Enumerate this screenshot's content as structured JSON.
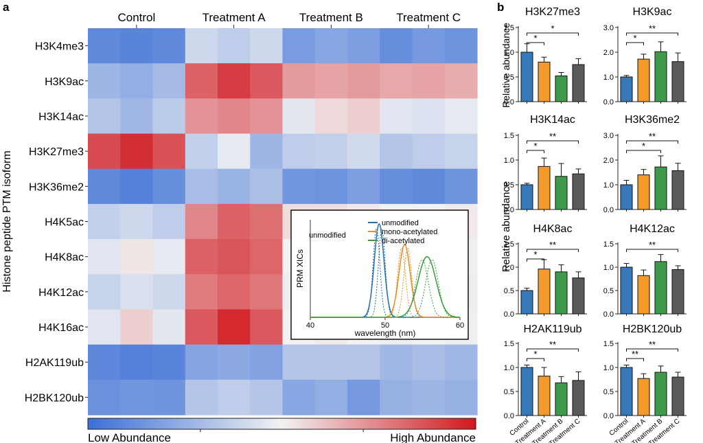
{
  "panel_a_label": "a",
  "panel_b_label": "b",
  "chart_data": [
    {
      "type": "heatmap",
      "panel": "a",
      "ylabel": "Histone peptide PTM isoform",
      "groups": [
        "Control",
        "Treatment A",
        "Treatment B",
        "Treatment C"
      ],
      "rows": [
        "H3K4me3",
        "H3K9ac",
        "H3K14ac",
        "H3K27me3",
        "H3K36me2",
        "H4K5ac",
        "H4K8ac",
        "H4K12ac",
        "H4K16ac",
        "H2AK119ub",
        "H2BK120ub"
      ],
      "scale": {
        "min": 0,
        "max": 1,
        "low_label": "Low Abundance",
        "high_label": "High Abundance",
        "low_color": "#3b6fd6",
        "mid_color": "#f2f2f2",
        "high_color": "#d0181e"
      },
      "values": [
        [
          0.1,
          0.08,
          0.1,
          0.4,
          0.36,
          0.4,
          0.17,
          0.21,
          0.18,
          0.12,
          0.16,
          0.14
        ],
        [
          0.27,
          0.24,
          0.29,
          0.83,
          0.92,
          0.85,
          0.7,
          0.68,
          0.7,
          0.67,
          0.68,
          0.66
        ],
        [
          0.33,
          0.28,
          0.35,
          0.72,
          0.75,
          0.72,
          0.46,
          0.56,
          0.58,
          0.45,
          0.44,
          0.47
        ],
        [
          0.88,
          0.95,
          0.87,
          0.37,
          0.47,
          0.27,
          0.36,
          0.37,
          0.41,
          0.33,
          0.36,
          0.38
        ],
        [
          0.1,
          0.07,
          0.12,
          0.3,
          0.26,
          0.31,
          0.15,
          0.14,
          0.18,
          0.12,
          0.1,
          0.14
        ],
        [
          0.37,
          0.4,
          0.36,
          0.75,
          0.83,
          0.8,
          0.55,
          0.55,
          0.52,
          0.5,
          0.5,
          0.52
        ],
        [
          0.45,
          0.53,
          0.47,
          0.83,
          0.86,
          0.82,
          0.5,
          0.52,
          0.5,
          0.48,
          0.5,
          0.49
        ],
        [
          0.38,
          0.43,
          0.4,
          0.77,
          0.82,
          0.78,
          0.48,
          0.52,
          0.48,
          0.47,
          0.49,
          0.48
        ],
        [
          0.45,
          0.58,
          0.46,
          0.85,
          0.96,
          0.85,
          0.5,
          0.52,
          0.5,
          0.49,
          0.5,
          0.49
        ],
        [
          0.09,
          0.07,
          0.08,
          0.2,
          0.22,
          0.19,
          0.33,
          0.33,
          0.33,
          0.28,
          0.3,
          0.28
        ],
        [
          0.13,
          0.15,
          0.14,
          0.33,
          0.36,
          0.33,
          0.21,
          0.24,
          0.16,
          0.25,
          0.27,
          0.25
        ]
      ]
    },
    {
      "type": "line",
      "panel": "a-inset",
      "xlabel": "wavelength (nm)",
      "ylabel": "PRM XICs",
      "annotation": "unmodified",
      "xlim": [
        40,
        60
      ],
      "xticks": [
        40,
        50,
        60
      ],
      "series": [
        {
          "name": "unmodified",
          "color": "#1f6fb5",
          "center": 49.2,
          "width": 0.65,
          "height": 1.0
        },
        {
          "name": "mono-acetylated",
          "color": "#ee8a1c",
          "center": 52.6,
          "width": 0.75,
          "height": 0.78
        },
        {
          "name": "di-acetylated",
          "color": "#3a9a3a",
          "center": 55.6,
          "width": 1.2,
          "height": 0.65
        }
      ]
    },
    {
      "type": "bar",
      "panel": "b",
      "ylabel": "Relative abundance",
      "categories": [
        "Control",
        "Treatment A",
        "Treatment B",
        "Treatment C"
      ],
      "bar_colors": [
        "#3778b8",
        "#f39a2b",
        "#3f9b4c",
        "#5a5a5a"
      ],
      "subplots": [
        {
          "title": "H3K27me3",
          "ylim": [
            0,
            1.5
          ],
          "yticks": [
            "0.0",
            "0.5",
            "1.0",
            "1.5"
          ],
          "values": [
            1.0,
            0.8,
            0.52,
            0.75
          ],
          "errors": [
            0.17,
            0.1,
            0.07,
            0.12
          ],
          "sig": [
            {
              "from": 0,
              "to": 1,
              "label": "*"
            },
            {
              "from": 0,
              "to": 3,
              "label": "*"
            }
          ]
        },
        {
          "title": "H3K9ac",
          "ylim": [
            0,
            3.0
          ],
          "yticks": [
            "0.0",
            "1.0",
            "2.0",
            "3.0"
          ],
          "values": [
            1.0,
            1.72,
            2.02,
            1.62
          ],
          "errors": [
            0.06,
            0.2,
            0.4,
            0.35
          ],
          "sig": [
            {
              "from": 0,
              "to": 1,
              "label": "*"
            },
            {
              "from": 0,
              "to": 3,
              "label": "**"
            }
          ]
        },
        {
          "title": "H3K14ac",
          "ylim": [
            0,
            1.5
          ],
          "yticks": [
            "0.0",
            "0.5",
            "1.0",
            "1.5"
          ],
          "values": [
            0.5,
            0.87,
            0.67,
            0.72
          ],
          "errors": [
            0.03,
            0.17,
            0.26,
            0.1
          ],
          "sig": [
            {
              "from": 0,
              "to": 1,
              "label": "*"
            },
            {
              "from": 0,
              "to": 3,
              "label": "**"
            }
          ]
        },
        {
          "title": "H3K36me2",
          "ylim": [
            0,
            3.0
          ],
          "yticks": [
            "0.0",
            "1.0",
            "2.0",
            "3.0"
          ],
          "values": [
            1.0,
            1.4,
            1.72,
            1.57
          ],
          "errors": [
            0.18,
            0.22,
            0.45,
            0.3
          ],
          "sig": [
            {
              "from": 0,
              "to": 2,
              "label": "*"
            },
            {
              "from": 0,
              "to": 3,
              "label": "**"
            }
          ]
        },
        {
          "title": "H4K8ac",
          "ylim": [
            0,
            1.5
          ],
          "yticks": [
            "0.0",
            "0.5",
            "1.0",
            "1.5"
          ],
          "values": [
            0.5,
            0.96,
            0.9,
            0.77
          ],
          "errors": [
            0.05,
            0.2,
            0.15,
            0.13
          ],
          "sig": [
            {
              "from": 0,
              "to": 1,
              "label": "*"
            },
            {
              "from": 0,
              "to": 3,
              "label": "**"
            }
          ]
        },
        {
          "title": "H4K12ac",
          "ylim": [
            0,
            1.5
          ],
          "yticks": [
            "0.0",
            "0.5",
            "1.0",
            "1.5"
          ],
          "values": [
            1.0,
            0.82,
            1.12,
            0.95
          ],
          "errors": [
            0.08,
            0.12,
            0.15,
            0.08
          ],
          "sig": [
            {
              "from": 0,
              "to": 3,
              "label": "**"
            }
          ]
        },
        {
          "title": "H2AK119ub",
          "ylim": [
            0,
            1.5
          ],
          "yticks": [
            "0.0",
            "0.5",
            "1.0",
            "1.5"
          ],
          "values": [
            1.0,
            0.82,
            0.68,
            0.73
          ],
          "errors": [
            0.05,
            0.18,
            0.13,
            0.18
          ],
          "sig": [
            {
              "from": 0,
              "to": 1,
              "label": "*"
            },
            {
              "from": 0,
              "to": 3,
              "label": "**"
            }
          ]
        },
        {
          "title": "H2BK120ub",
          "ylim": [
            0,
            1.5
          ],
          "yticks": [
            "0.0",
            "0.5",
            "1.0",
            "1.5"
          ],
          "values": [
            1.0,
            0.77,
            0.9,
            0.8
          ],
          "errors": [
            0.05,
            0.1,
            0.13,
            0.1
          ],
          "sig": [
            {
              "from": 0,
              "to": 1,
              "label": "**"
            },
            {
              "from": 0,
              "to": 3,
              "label": "**"
            }
          ]
        }
      ]
    }
  ]
}
